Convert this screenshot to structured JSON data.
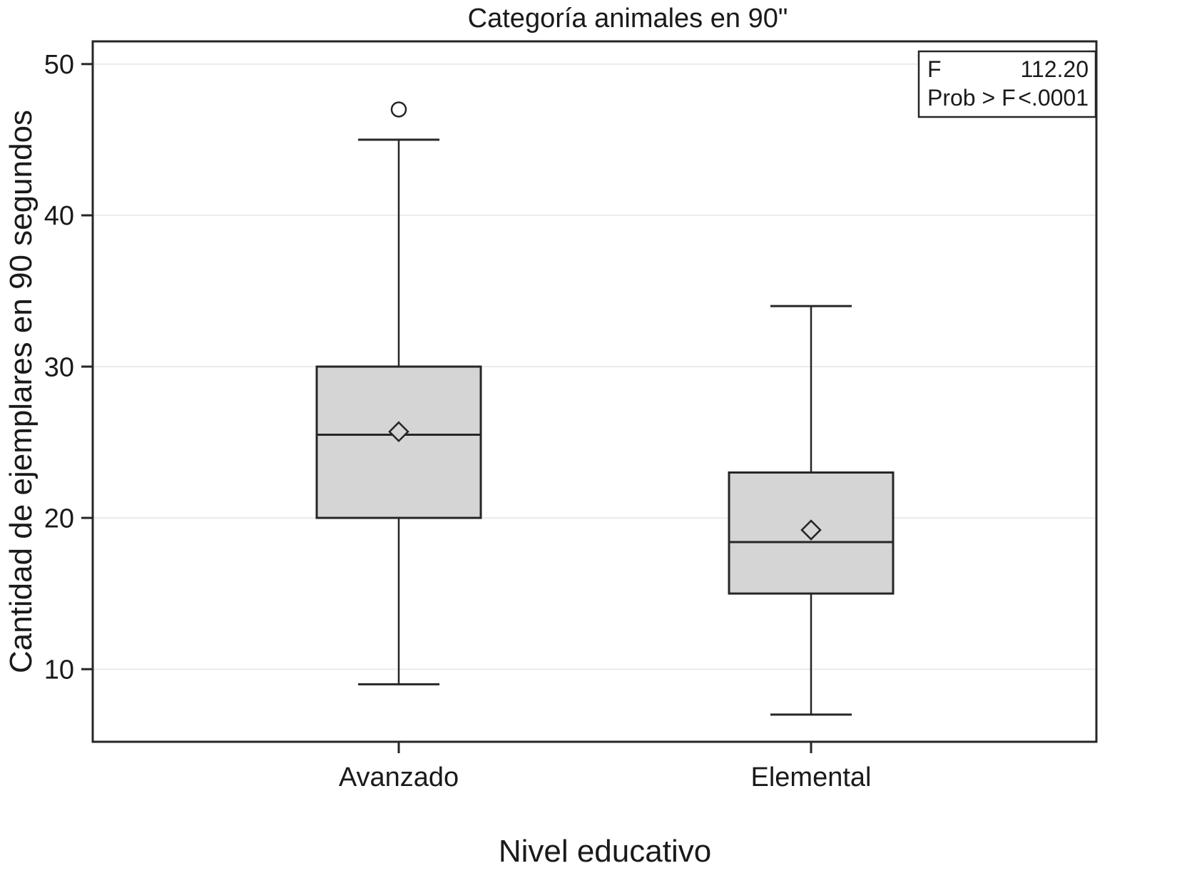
{
  "chart_data": {
    "type": "boxplot",
    "title": "Categoría animales en 90\"",
    "xlabel": "Nivel educativo",
    "ylabel": "Cantidad de ejemplares en 90 segundos",
    "ylim": [
      5.2,
      51.5
    ],
    "yticks": [
      10,
      20,
      30,
      40,
      50
    ],
    "grid": "horizontal-light",
    "categories": [
      "Avanzado",
      "Elemental"
    ],
    "series": [
      {
        "name": "Avanzado",
        "whisker_low": 9,
        "q1": 20,
        "median": 25.5,
        "mean": 25.7,
        "q3": 30,
        "whisker_high": 45,
        "outliers": [
          47
        ]
      },
      {
        "name": "Elemental",
        "whisker_low": 7,
        "q1": 15,
        "median": 18.4,
        "mean": 19.2,
        "q3": 23,
        "whisker_high": 34,
        "outliers": []
      }
    ],
    "annotation": {
      "position": "top-right",
      "rows": [
        [
          "F",
          "112.20"
        ],
        [
          "Prob > F",
          "<.0001"
        ]
      ]
    }
  },
  "colors": {
    "line": "#262626",
    "box_fill": "#d5d5d5",
    "gridline": "#ebebeb",
    "background": "#ffffff",
    "text": "#1a1a1a"
  }
}
